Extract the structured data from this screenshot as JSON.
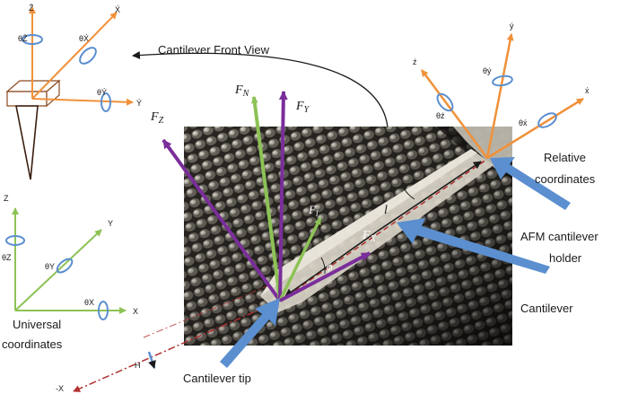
{
  "colors": {
    "orange": "#F0913A",
    "green": "#8DC256",
    "purple": "#7A2E9A",
    "blue": "#5B8FD0",
    "dark": "#1a1a1a",
    "red": "#B03030",
    "brown": "#8B4A22"
  },
  "labels": {
    "front_view": "Cantilever Front View",
    "relative": [
      "Relative",
      "coordinates"
    ],
    "holder": [
      "AFM cantilever",
      "holder"
    ],
    "cantilever": "Cantilever",
    "tip": "Cantilever tip",
    "universal": [
      "Universal",
      "coordinates"
    ],
    "minus_x": "-X",
    "h": "H"
  },
  "forces": {
    "fn": "F_N",
    "fy": "F_Y",
    "fz": "F_Z",
    "fx": "F_X",
    "fl": "F_l",
    "l": "l",
    "phi": "ϕ"
  },
  "front_view_axes": {
    "z": "Ź",
    "x": "X́",
    "y": "Ý",
    "theta_z": "θŹ",
    "theta_x": "θX́",
    "theta_y": "θÝ"
  },
  "relative_axes": {
    "z": "ź",
    "y": "ý",
    "x": "x́",
    "theta_z": "θź",
    "theta_y": "θý",
    "theta_x": "θx́"
  },
  "universal_axes": {
    "z": "Z",
    "y": "Y",
    "x": "X",
    "theta_z": "θZ",
    "theta_y": "θY",
    "theta_x": "θX"
  }
}
